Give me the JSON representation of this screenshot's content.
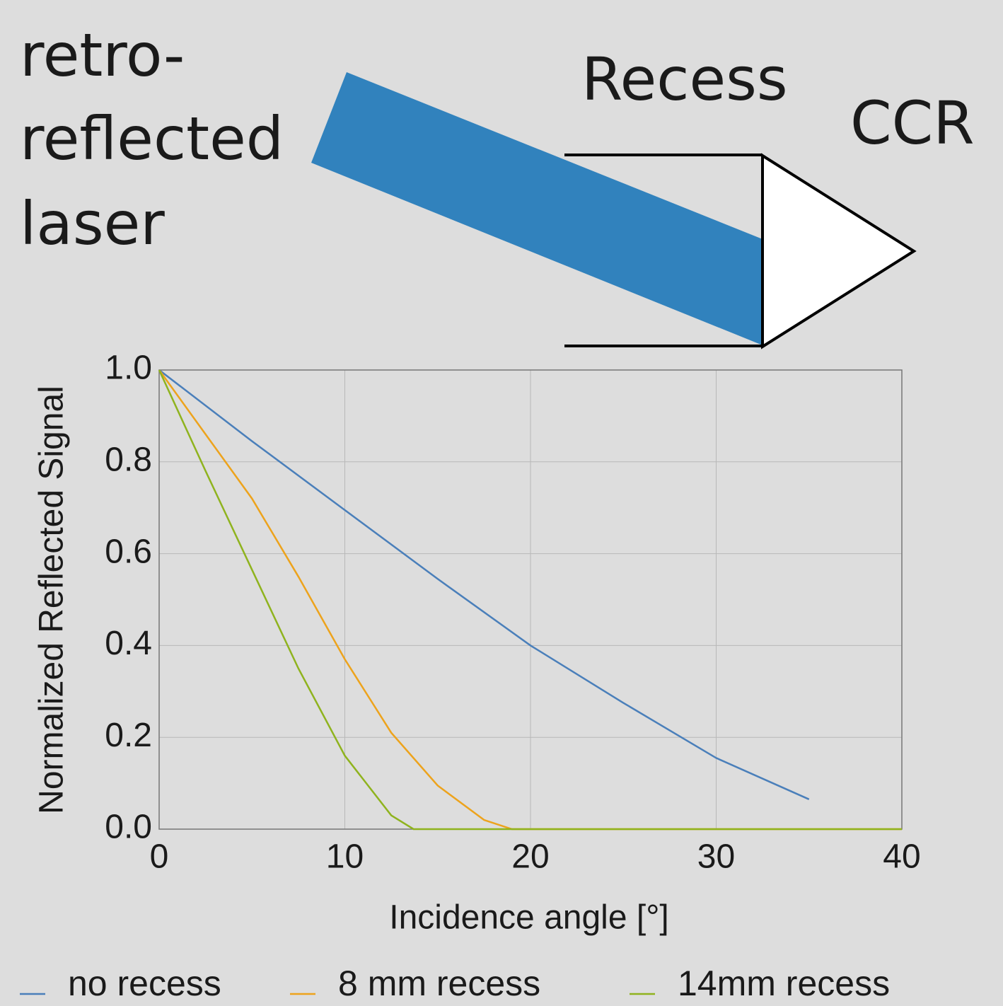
{
  "chart_data": {
    "type": "line",
    "annotations": {
      "laser": [
        "retro-",
        "reflected",
        "laser"
      ],
      "recess": "Recess",
      "ccr": "CCR"
    },
    "xlabel": "Incidence angle [°]",
    "ylabel": "Normalized Reflected Signal",
    "xlim": [
      0,
      40
    ],
    "ylim": [
      0,
      1
    ],
    "xticks": [
      0,
      10,
      20,
      30,
      40
    ],
    "yticks": [
      {
        "value": 0,
        "label": "0.0"
      },
      0.2,
      0.4,
      0.6,
      0.8,
      {
        "value": 1,
        "label": "1.0"
      }
    ],
    "grid": true,
    "series": [
      {
        "name": "no recess",
        "color": "#4a7fba",
        "x": [
          0,
          5,
          10,
          15,
          20,
          25,
          30,
          35
        ],
        "values": [
          1.0,
          0.845,
          0.695,
          0.545,
          0.4,
          0.275,
          0.155,
          0.065
        ]
      },
      {
        "name": "8 mm recess",
        "color": "#eda31c",
        "x": [
          0,
          2.5,
          5,
          7.5,
          10,
          12.5,
          15,
          17.5,
          19,
          20,
          40
        ],
        "values": [
          1.0,
          0.86,
          0.72,
          0.55,
          0.37,
          0.21,
          0.095,
          0.02,
          0,
          0,
          0
        ]
      },
      {
        "name": "14mm recess",
        "color": "#8fb31e",
        "x": [
          0,
          2.5,
          5,
          7.5,
          10,
          12.5,
          13.7,
          20,
          40
        ],
        "values": [
          1.0,
          0.78,
          0.565,
          0.35,
          0.16,
          0.03,
          0,
          0,
          0
        ]
      }
    ]
  }
}
